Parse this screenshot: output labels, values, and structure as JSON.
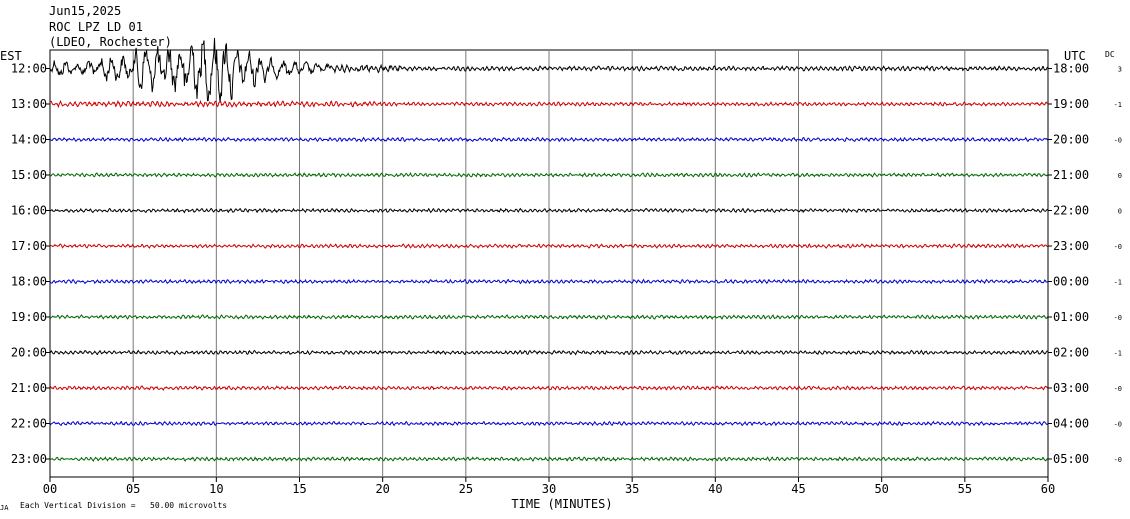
{
  "header": {
    "date": "Jun15,2025",
    "station": "ROC LPZ LD 01",
    "network": "(LDEO, Rochester)"
  },
  "left_axis_label": "EST",
  "right_axis_label": "UTC",
  "dc_label": "DC",
  "footer": {
    "division_note": "Each Vertical Division =   50.00 microvolts",
    "corner_mark": "JA"
  },
  "chart_data": {
    "type": "line",
    "title": "",
    "xlabel": "TIME (MINUTES)",
    "xlim": [
      0,
      60
    ],
    "x_ticks": [
      {
        "value": 0,
        "label": "00"
      },
      {
        "value": 5,
        "label": "05"
      },
      {
        "value": 10,
        "label": "10"
      },
      {
        "value": 15,
        "label": "15"
      },
      {
        "value": 20,
        "label": "20"
      },
      {
        "value": 25,
        "label": "25"
      },
      {
        "value": 30,
        "label": "30"
      },
      {
        "value": 35,
        "label": "35"
      },
      {
        "value": 40,
        "label": "40"
      },
      {
        "value": 45,
        "label": "45"
      },
      {
        "value": 50,
        "label": "50"
      },
      {
        "value": 55,
        "label": "55"
      },
      {
        "value": 60,
        "label": "60"
      }
    ],
    "grid": true,
    "traces": [
      {
        "est": "12:00",
        "utc": "18:00",
        "dc": "3",
        "color": "#000000",
        "event": true
      },
      {
        "est": "13:00",
        "utc": "19:00",
        "dc": "-1",
        "color": "#cc0000"
      },
      {
        "est": "14:00",
        "utc": "20:00",
        "dc": "-0",
        "color": "#0000cc"
      },
      {
        "est": "15:00",
        "utc": "21:00",
        "dc": "0",
        "color": "#006600"
      },
      {
        "est": "16:00",
        "utc": "22:00",
        "dc": "0",
        "color": "#000000"
      },
      {
        "est": "17:00",
        "utc": "23:00",
        "dc": "-0",
        "color": "#cc0000"
      },
      {
        "est": "18:00",
        "utc": "00:00",
        "dc": "-1",
        "color": "#0000cc"
      },
      {
        "est": "19:00",
        "utc": "01:00",
        "dc": "-0",
        "color": "#006600"
      },
      {
        "est": "20:00",
        "utc": "02:00",
        "dc": "-1",
        "color": "#000000"
      },
      {
        "est": "21:00",
        "utc": "03:00",
        "dc": "-0",
        "color": "#cc0000"
      },
      {
        "est": "22:00",
        "utc": "04:00",
        "dc": "-0",
        "color": "#0000cc"
      },
      {
        "est": "23:00",
        "utc": "05:00",
        "dc": "-0",
        "color": "#006600"
      }
    ]
  }
}
